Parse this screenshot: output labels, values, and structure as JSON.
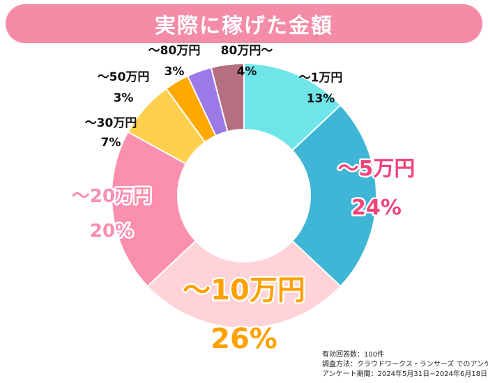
{
  "chart_data": {
    "type": "pie",
    "donut": true,
    "title": "実際に稼げた金額",
    "slices": [
      {
        "label": "〜1万円",
        "value": 13,
        "value_label": "13%",
        "color": "#6ee6e9"
      },
      {
        "label": "〜5万円",
        "value": 24,
        "value_label": "24%",
        "color": "#40b6d6"
      },
      {
        "label": "〜10万円",
        "value": 26,
        "value_label": "26%",
        "color": "#ffd3d8"
      },
      {
        "label": "〜20万円",
        "value": 20,
        "value_label": "20%",
        "color": "#fb8faf"
      },
      {
        "label": "〜30万円",
        "value": 7,
        "value_label": "7%",
        "color": "#ffcf4d"
      },
      {
        "label": "〜50万円",
        "value": 3,
        "value_label": "3%",
        "color": "#ffa800"
      },
      {
        "label": "〜80万円",
        "value": 3,
        "value_label": "3%",
        "color": "#9b79e6"
      },
      {
        "label": "80万円〜",
        "value": 4,
        "value_label": "4%",
        "color": "#b56f82"
      }
    ],
    "label_colors": {
      "small": "#111111",
      "〜5万円": "#f0457a",
      "〜10万円": "#ffa100",
      "〜20万円": "#fb8faf"
    }
  },
  "footnote": {
    "line1": "有効回答数：100件",
    "line2": "調査方法：クラウドワークス・ランサーズ でのアンケート",
    "line3": "アンケート期間：2024年5月31日−2024年6月18日"
  }
}
